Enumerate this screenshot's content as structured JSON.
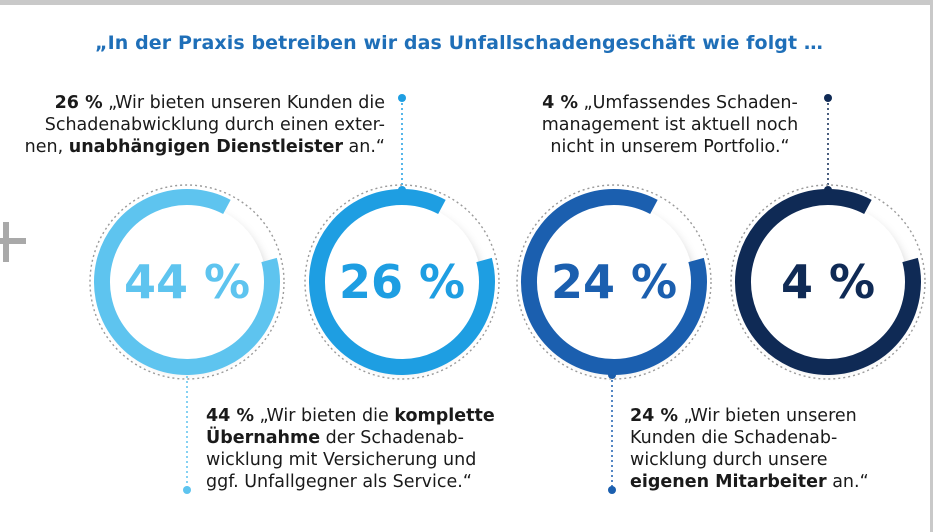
{
  "title": "„In der Praxis betreiben wir das Unfallschadengeschäft wie folgt …",
  "chart_data": {
    "type": "donut",
    "unit": "%",
    "series": [
      {
        "value": 44,
        "label": "44 %",
        "color": "#5ec4ef"
      },
      {
        "value": 26,
        "label": "26 %",
        "color": "#1e9ee2"
      },
      {
        "value": 24,
        "label": "24 %",
        "color": "#1b5faf"
      },
      {
        "value": 4,
        "label": "4 %",
        "color": "#0f2a55"
      }
    ]
  },
  "callouts": {
    "c26": {
      "pct": "26 %",
      "line1_rest": " „Wir bieten unseren Kunden die",
      "line2": "Schadenabwicklung durch einen exter-",
      "line3_pre": "nen, ",
      "line3_bold": "unabhängigen Dienstleister",
      "line3_post": " an.“"
    },
    "c4": {
      "pct": "4 %",
      "line1_rest": " „Umfassendes Schaden-",
      "line2": "management ist aktuell noch",
      "line3": "nicht in unserem Portfolio.“"
    },
    "c44": {
      "pct": "44 %",
      "line1_mid": " „Wir bieten die ",
      "line1_bold": "komplette",
      "line2_bold": "Übernahme",
      "line2_post": " der Schadenab-",
      "line3": "wicklung mit Versicherung und",
      "line4": "ggf. Unfallgegner als Service.“"
    },
    "c24": {
      "pct": "24 %",
      "line1_rest": " „Wir bieten unseren",
      "line2": "Kunden die Schadenab-",
      "line3": "wicklung durch unsere",
      "line4_bold": "eigenen Mitarbeiter",
      "line4_post": " an.“"
    }
  }
}
